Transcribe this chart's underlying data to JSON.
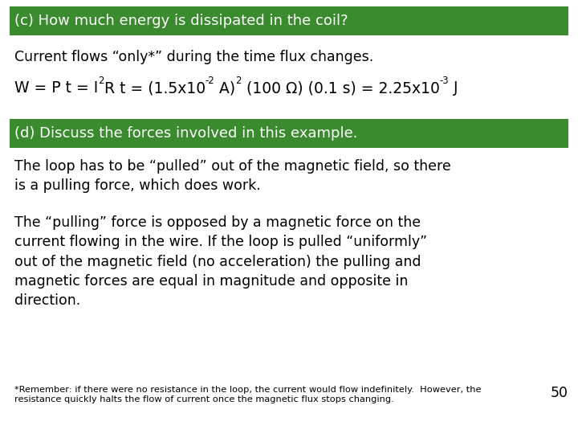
{
  "bg_color": "#ffffff",
  "green_color": "#3a8a2e",
  "text_color": "#000000",
  "white_text": "#ffffff",
  "header_c": "(c) How much energy is dissipated in the coil?",
  "header_d": "(d) Discuss the forces involved in this example.",
  "line1": "Current flows “only*” during the time flux changes.",
  "para1": "The loop has to be “pulled” out of the magnetic field, so there\nis a pulling force, which does work.",
  "para2": "The “pulling” force is opposed by a magnetic force on the\ncurrent flowing in the wire. If the loop is pulled “uniformly”\nout of the magnetic field (no acceleration) the pulling and\nmagnetic forces are equal in magnitude and opposite in\ndirection.",
  "footnote": "*Remember: if there were no resistance in the loop, the current would flow indefinitely.  However, the\nresistance quickly halts the flow of current once the magnetic flux stops changing.",
  "page_num": "50",
  "main_fontsize": 12.5,
  "header_fontsize": 13.0,
  "small_fontsize": 8.2,
  "equation_fontsize": 13.5,
  "eq_pieces": [
    [
      "W = P t = I",
      false
    ],
    [
      "2",
      true
    ],
    [
      "R t = (1.5x10",
      false
    ],
    [
      "-2",
      true
    ],
    [
      " A)",
      false
    ],
    [
      "2",
      true
    ],
    [
      " (100 Ω) (0.1 s) = 2.25x10",
      false
    ],
    [
      "-3",
      true
    ],
    [
      " J",
      false
    ]
  ]
}
